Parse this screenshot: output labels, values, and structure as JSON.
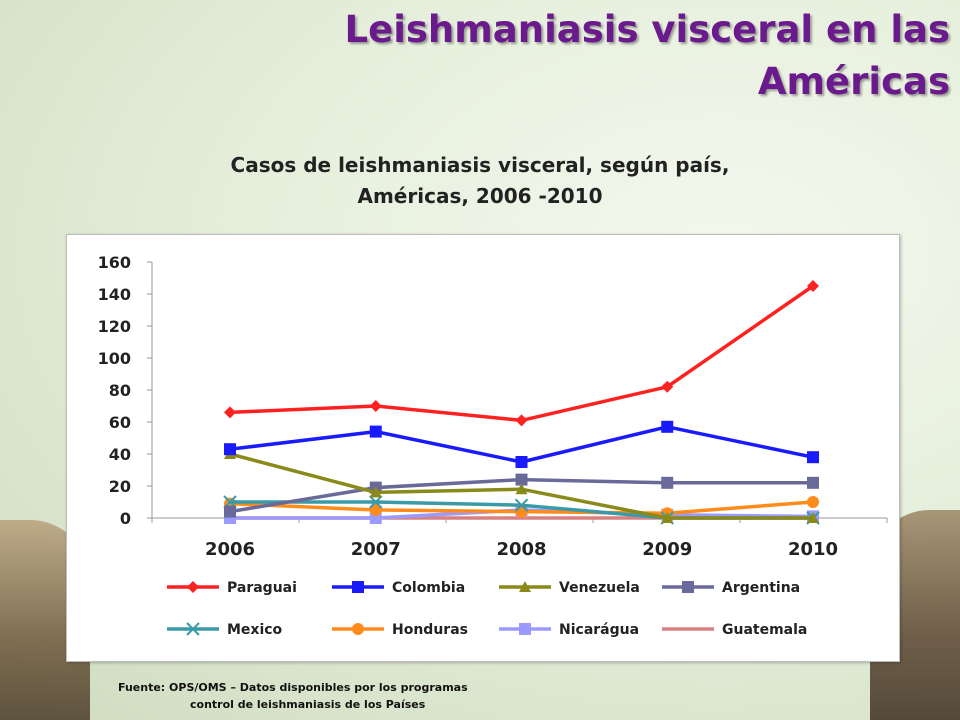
{
  "title_line1": "Leishmaniasis visceral en las",
  "title_line2": "Américas",
  "chart_title_line1": "Casos de leishmaniasis visceral, según país,",
  "chart_title_line2": "Américas, 2006 -2010",
  "source_line1": "Fuente:  OPS/OMS – Datos disponibles por los programas",
  "source_line2": "control de leishmaniasis de los Países",
  "chart_data": {
    "type": "line",
    "x": [
      "2006",
      "2007",
      "2008",
      "2009",
      "2010"
    ],
    "ylim": [
      0,
      160
    ],
    "yticks": [
      0,
      20,
      40,
      60,
      80,
      100,
      120,
      140,
      160
    ],
    "grid": false,
    "legend_position": "bottom",
    "series": [
      {
        "name": "Paraguai",
        "color": "#ff2020",
        "marker": "diamond",
        "values": [
          66,
          70,
          61,
          82,
          145
        ]
      },
      {
        "name": "Colombia",
        "color": "#1a1aff",
        "marker": "square",
        "values": [
          43,
          54,
          35,
          57,
          38
        ]
      },
      {
        "name": "Venezuela",
        "color": "#8a8a1a",
        "marker": "triangle",
        "values": [
          40,
          16,
          18,
          0,
          0
        ]
      },
      {
        "name": "Argentina",
        "color": "#6a6a9a",
        "marker": "square",
        "values": [
          4,
          19,
          24,
          22,
          22
        ]
      },
      {
        "name": "Mexico",
        "color": "#3a9aa8",
        "marker": "x",
        "values": [
          10,
          10,
          8,
          0,
          0
        ]
      },
      {
        "name": "Honduras",
        "color": "#ff8c1a",
        "marker": "circle",
        "values": [
          9,
          5,
          4,
          3,
          10
        ]
      },
      {
        "name": "Nicarágua",
        "color": "#9a9aff",
        "marker": "square",
        "values": [
          0,
          0,
          5,
          2,
          1
        ]
      },
      {
        "name": "Guatemala",
        "color": "#d88080",
        "marker": "none",
        "values": [
          0,
          0,
          0,
          0,
          0
        ]
      }
    ]
  }
}
